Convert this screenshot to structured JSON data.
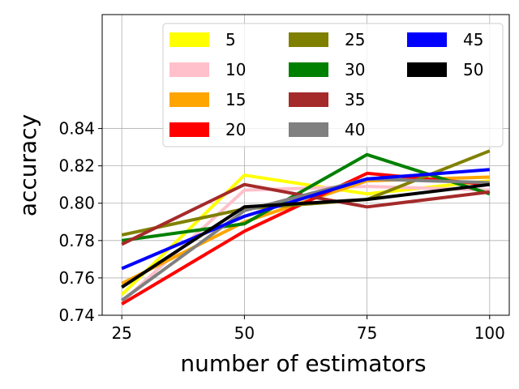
{
  "chart_data": {
    "type": "line",
    "title": "",
    "xlabel": "number of estimators",
    "ylabel": "accuracy",
    "x": [
      25,
      50,
      75,
      100
    ],
    "x_ticks": [
      "25",
      "50",
      "75",
      "100"
    ],
    "y_ticks": [
      "0.74",
      "0.76",
      "0.78",
      "0.80",
      "0.82",
      "0.84"
    ],
    "xlim": [
      21,
      104
    ],
    "ylim": [
      0.74,
      0.901
    ],
    "grid": true,
    "legend_position": "top-right",
    "legend_columns": 3,
    "series": [
      {
        "name": "5",
        "color": "#ffff00",
        "values": [
          0.751,
          0.815,
          0.805,
          0.812
        ]
      },
      {
        "name": "10",
        "color": "#ffc0cb",
        "values": [
          0.747,
          0.807,
          0.809,
          0.807
        ]
      },
      {
        "name": "15",
        "color": "#ffa500",
        "values": [
          0.757,
          0.79,
          0.812,
          0.814
        ]
      },
      {
        "name": "20",
        "color": "#ff0000",
        "values": [
          0.746,
          0.785,
          0.816,
          0.81
        ]
      },
      {
        "name": "25",
        "color": "#808000",
        "values": [
          0.783,
          0.797,
          0.802,
          0.828
        ]
      },
      {
        "name": "30",
        "color": "#008000",
        "values": [
          0.78,
          0.789,
          0.826,
          0.805
        ]
      },
      {
        "name": "35",
        "color": "#a52a2a",
        "values": [
          0.778,
          0.81,
          0.798,
          0.806
        ]
      },
      {
        "name": "40",
        "color": "#808080",
        "values": [
          0.748,
          0.796,
          0.813,
          0.811
        ]
      },
      {
        "name": "45",
        "color": "#0000ff",
        "values": [
          0.765,
          0.793,
          0.813,
          0.818
        ]
      },
      {
        "name": "50",
        "color": "#000000",
        "values": [
          0.755,
          0.798,
          0.802,
          0.81
        ]
      }
    ]
  }
}
